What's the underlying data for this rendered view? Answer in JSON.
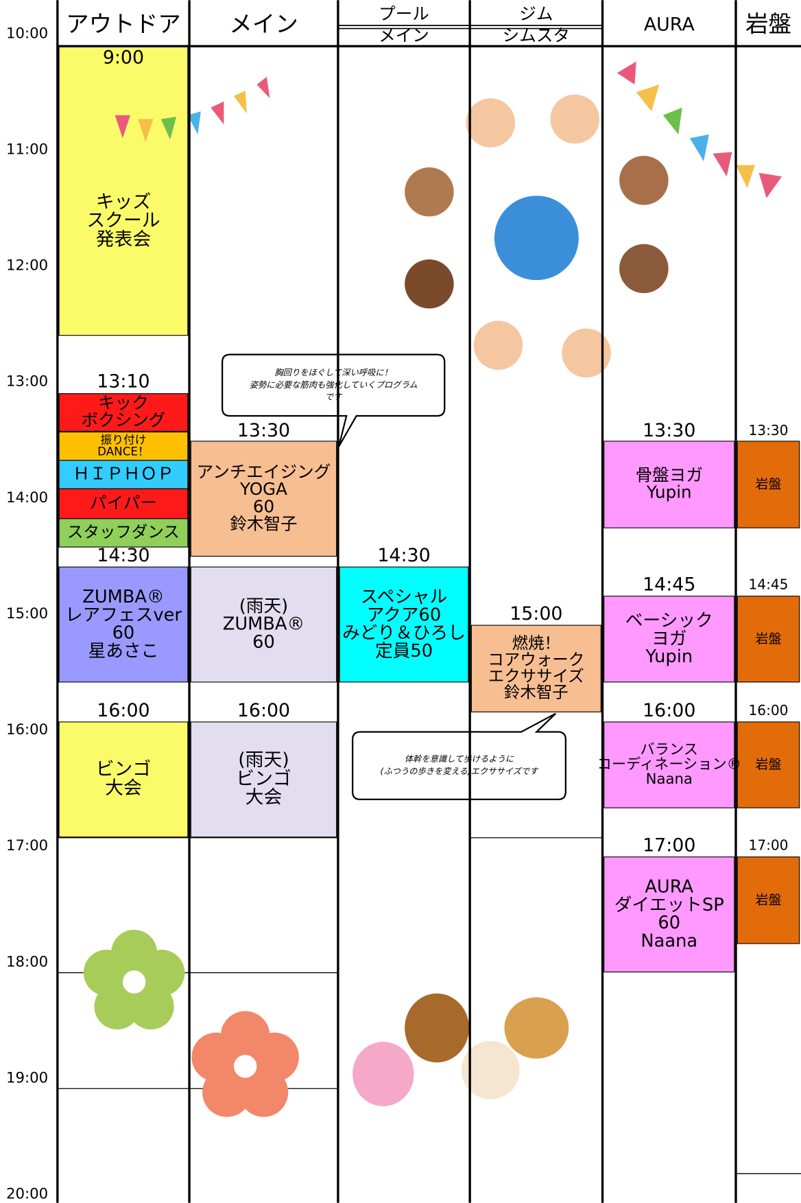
{
  "headers": [
    {
      "label": "アウトドア"
    },
    {
      "label": "メイン"
    },
    {
      "label": "プール",
      "sub": "メイン"
    },
    {
      "label": "ジム",
      "sub": "シムスタ"
    },
    {
      "label": "AURA"
    },
    {
      "label": "岩盤"
    }
  ],
  "time_labels": [
    "10:00",
    "11:00",
    "12:00",
    "13:00",
    "14:00",
    "15:00",
    "16:00",
    "17:00",
    "18:00",
    "19:00",
    "20:00"
  ],
  "columns": [
    {
      "events": [
        {
          "time": "9:00",
          "lines": [
            "キッズ",
            "スクール",
            "発表会"
          ],
          "color": "#fbfb6a"
        },
        {
          "time": "13:10",
          "lines": [
            "キック",
            "ボクシング"
          ],
          "color": "#ff1a1a"
        },
        {
          "lines": [
            "振り付け",
            "DANCE！"
          ],
          "color": "#fcc000"
        },
        {
          "lines": [
            "ＨＩＰＨＯＰ"
          ],
          "color": "#33ccff"
        },
        {
          "lines": [
            "パイパー"
          ],
          "color": "#ff1a1a"
        },
        {
          "lines": [
            "スタッフダンス"
          ],
          "color": "#8fcf5a"
        },
        {
          "time": "14:30",
          "lines": [
            "ZUMBA®",
            "レアフェスver",
            "60",
            "星あさこ"
          ],
          "color": "#9999ff"
        },
        {
          "time": "16:00",
          "lines": [
            "ビンゴ",
            "大会"
          ],
          "color": "#fbfb6a"
        }
      ]
    },
    {
      "events": [
        {
          "time": "13:30",
          "lines": [
            "アンチエイジング",
            "YOGA",
            "60",
            "鈴木智子"
          ],
          "color": "#f7be91"
        },
        {
          "lines": [
            "(雨天)",
            "ZUMBA®",
            "60"
          ],
          "color": "#e2deef"
        },
        {
          "time": "16:00",
          "lines": [
            "(雨天)",
            "ビンゴ",
            "大会"
          ],
          "color": "#e2deef"
        }
      ]
    },
    {
      "events": [
        {
          "time": "14:30",
          "lines": [
            "スペシャル",
            "アクア60",
            "みどり＆ひろし",
            "定員50"
          ],
          "color": "#00ffff"
        }
      ]
    },
    {
      "events": [
        {
          "time": "15:00",
          "lines": [
            "燃焼！",
            "コアウォーク",
            "エクササイズ",
            "鈴木智子"
          ],
          "color": "#f7be91"
        }
      ]
    },
    {
      "events": [
        {
          "time": "13:30",
          "lines": [
            "骨盤ヨガ",
            "Yupin"
          ],
          "color": "#ff99ff"
        },
        {
          "time": "14:45",
          "lines": [
            "ベーシック",
            "ヨガ",
            "Yupin"
          ],
          "color": "#ff99ff"
        },
        {
          "time": "16:00",
          "lines": [
            "バランス",
            "コーディネーション®",
            "Naana"
          ],
          "color": "#ff99ff"
        },
        {
          "time": "17:00",
          "lines": [
            "AURA",
            "ダイエットSP",
            "60",
            "Naana"
          ],
          "color": "#ff99ff"
        }
      ]
    },
    {
      "events": [
        {
          "time": "13:30",
          "lines": [
            "岩盤"
          ],
          "color": "#e36c0a"
        },
        {
          "time": "14:45",
          "lines": [
            "岩盤"
          ],
          "color": "#e36c0a"
        },
        {
          "time": "16:00",
          "lines": [
            "岩盤"
          ],
          "color": "#e36c0a"
        },
        {
          "time": "17:00",
          "lines": [
            "岩盤"
          ],
          "color": "#e36c0a"
        }
      ]
    }
  ],
  "callouts": [
    {
      "lines": [
        "胸回りをほぐして深い呼吸に！",
        "姿勢に必要な筋肉も強化していくプログラム",
        "です"
      ]
    },
    {
      "lines": [
        "体幹を意識して歩けるように",
        "(ふつうの歩きを変える)エクササイズです"
      ]
    }
  ]
}
